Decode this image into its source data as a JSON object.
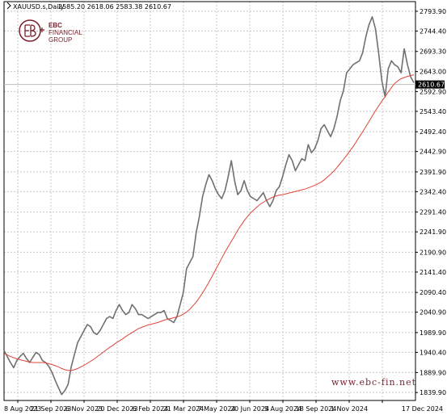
{
  "header": {
    "symbol": "XAUUSD.s,Daily",
    "ohlc": "2585.20 2618.06 2583.38 2610.67"
  },
  "brand": {
    "line1": "EBC",
    "line2": "FINANCIAL",
    "line3": "GROUP"
  },
  "watermark": "www.ebc-fin.net",
  "colors": {
    "price": "#707070",
    "ma": "#e0453a",
    "grid": "#c8c8c8",
    "brand": "#7a1f2b",
    "label_bg": "#000000"
  },
  "chart_data": {
    "type": "line",
    "title": "XAUUSD.s,Daily",
    "xlabel": "",
    "ylabel": "",
    "ylim": [
      1820.0,
      2818.0
    ],
    "last_price": "2610.67",
    "grid": true,
    "x_ticks": [
      "8 Aug 2023",
      "21 Sep 2023",
      "6 Nov 2023",
      "20 Dec 2023",
      "6 Feb 2024",
      "21 Mar 2024",
      "7 May 2024",
      "20 Jun 2024",
      "5 Aug 2024",
      "18 Sep 2024",
      "1 Nov 2024",
      "17 Dec 2024"
    ],
    "y_ticks": [
      "2793.90",
      "2744.40",
      "2693.30",
      "2643.00",
      "2592.90",
      "2543.40",
      "2492.40",
      "2442.90",
      "2391.90",
      "2342.40",
      "2291.40",
      "2241.90",
      "2190.90",
      "2141.40",
      "2090.40",
      "2040.90",
      "1989.90",
      "1940.40",
      "1889.90",
      "1839.90"
    ],
    "series": [
      {
        "values": [
          1945,
          1930,
          1915,
          1902,
          1920,
          1930,
          1938,
          1925,
          1915,
          1928,
          1940,
          1935,
          1920,
          1915,
          1905,
          1890,
          1870,
          1852,
          1835,
          1845,
          1860,
          1905,
          1935,
          1965,
          1980,
          1995,
          2010,
          2005,
          1990,
          1985,
          1995,
          2010,
          2025,
          2030,
          2025,
          2045,
          2060,
          2045,
          2035,
          2040,
          2060,
          2050,
          2035,
          2035,
          2030,
          2025,
          2030,
          2035,
          2040,
          2040,
          2045,
          2025,
          2020,
          2015,
          2030,
          2060,
          2090,
          2150,
          2165,
          2180,
          2240,
          2280,
          2330,
          2360,
          2385,
          2370,
          2350,
          2335,
          2325,
          2345,
          2380,
          2420,
          2370,
          2335,
          2345,
          2370,
          2345,
          2330,
          2325,
          2320,
          2330,
          2340,
          2320,
          2305,
          2320,
          2345,
          2355,
          2380,
          2410,
          2435,
          2420,
          2395,
          2410,
          2425,
          2420,
          2460,
          2440,
          2450,
          2470,
          2500,
          2510,
          2495,
          2480,
          2500,
          2530,
          2570,
          2595,
          2640,
          2650,
          2660,
          2665,
          2670,
          2690,
          2730,
          2760,
          2780,
          2750,
          2690,
          2620,
          2580,
          2650,
          2670,
          2660,
          2655,
          2640,
          2700,
          2660,
          2630,
          2615
        ]
      },
      {
        "values": [
          1938,
          1934,
          1930,
          1927,
          1924,
          1922,
          1920,
          1918,
          1916,
          1915,
          1915,
          1915,
          1915,
          1914,
          1912,
          1910,
          1907,
          1904,
          1900,
          1897,
          1895,
          1895,
          1897,
          1900,
          1904,
          1908,
          1913,
          1918,
          1923,
          1929,
          1935,
          1941,
          1947,
          1953,
          1958,
          1964,
          1969,
          1974,
          1980,
          1985,
          1990,
          1995,
          2000,
          2003,
          2006,
          2009,
          2011,
          2013,
          2015,
          2018,
          2021,
          2023,
          2025,
          2027,
          2029,
          2032,
          2036,
          2041,
          2048,
          2057,
          2066,
          2077,
          2089,
          2102,
          2116,
          2131,
          2146,
          2161,
          2176,
          2191,
          2205,
          2218,
          2232,
          2246,
          2258,
          2270,
          2280,
          2289,
          2297,
          2304,
          2311,
          2316,
          2321,
          2325,
          2329,
          2332,
          2334,
          2335,
          2337,
          2339,
          2341,
          2343,
          2345,
          2347,
          2349,
          2352,
          2355,
          2358,
          2362,
          2366,
          2372,
          2379,
          2386,
          2394,
          2403,
          2413,
          2423,
          2433,
          2444,
          2455,
          2467,
          2480,
          2492,
          2505,
          2518,
          2532,
          2545,
          2557,
          2569,
          2580,
          2592,
          2603,
          2613,
          2620,
          2625,
          2628,
          2631,
          2633,
          2635
        ]
      }
    ]
  }
}
